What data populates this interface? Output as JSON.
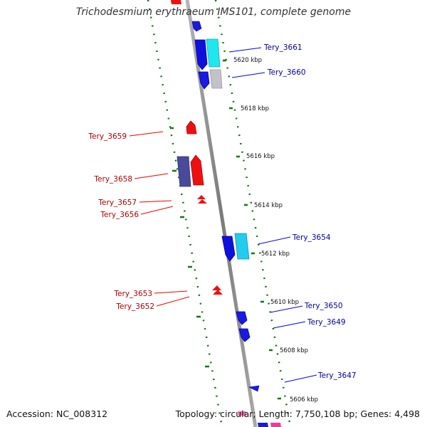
{
  "title": "Trichodesmium erythraeum IMS101, complete genome",
  "footer": {
    "accession": "Accession: NC_008312",
    "topology": "Topology: circular; Length: 7,750,108 bp; Genes: 4,498"
  },
  "colors": {
    "forward_gene": "#0000ee",
    "reverse_gene": "#ee0000",
    "forward_label": "#000099",
    "reverse_label": "#aa0000",
    "scale_dots": "#117711",
    "backbone": "#8a8a8a"
  },
  "scale_labels": [
    "5620 kbp",
    "5618 kbp",
    "5616 kbp",
    "5614 kbp",
    "5612 kbp",
    "5610 kbp",
    "5608 kbp",
    "5606 kbp"
  ],
  "forward_genes": [
    "Tery_3661",
    "Tery_3660",
    "Tery_3654",
    "Tery_3650",
    "Tery_3649",
    "Tery_3647"
  ],
  "reverse_genes": [
    "Tery_3659",
    "Tery_3658",
    "Tery_3657",
    "Tery_3656",
    "Tery_3653",
    "Tery_3652"
  ]
}
